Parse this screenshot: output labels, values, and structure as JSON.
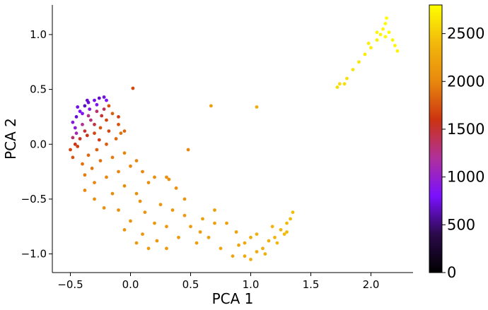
{
  "chart_data": {
    "type": "scatter",
    "title": "",
    "xlabel": "PCA 1",
    "ylabel": "PCA 2",
    "xlim": [
      -0.65,
      2.35
    ],
    "ylim": [
      -1.17,
      1.27
    ],
    "xticks": [
      {
        "value": -0.5,
        "label": "−0.5"
      },
      {
        "value": 0.0,
        "label": "0.0"
      },
      {
        "value": 0.5,
        "label": "0.5"
      },
      {
        "value": 1.0,
        "label": "1.0"
      },
      {
        "value": 1.5,
        "label": "1.5"
      },
      {
        "value": 2.0,
        "label": "2.0"
      }
    ],
    "yticks": [
      {
        "value": -1.0,
        "label": "−1.0"
      },
      {
        "value": -0.5,
        "label": "−0.5"
      },
      {
        "value": 0.0,
        "label": "0.0"
      },
      {
        "value": 0.5,
        "label": "0.5"
      },
      {
        "value": 1.0,
        "label": "1.0"
      }
    ],
    "grid": false,
    "colorbar": {
      "colormap": "gnuplot",
      "range": [
        0,
        2800
      ],
      "ticks": [
        {
          "value": 0,
          "label": "0"
        },
        {
          "value": 500,
          "label": "500"
        },
        {
          "value": 1000,
          "label": "1000"
        },
        {
          "value": 1500,
          "label": "1500"
        },
        {
          "value": 2000,
          "label": "2000"
        },
        {
          "value": 2500,
          "label": "2500"
        }
      ],
      "stops": [
        "#000000",
        "#2b0a4a",
        "#7a10ff",
        "#b0309a",
        "#cc3311",
        "#e8880e",
        "#f2b80c",
        "#ffff00"
      ]
    },
    "points": [
      [
        -0.45,
        0.25,
        700
      ],
      [
        -0.42,
        0.3,
        800
      ],
      [
        -0.38,
        0.35,
        650
      ],
      [
        -0.35,
        0.38,
        720
      ],
      [
        -0.3,
        0.4,
        760
      ],
      [
        -0.26,
        0.42,
        690
      ],
      [
        -0.22,
        0.43,
        740
      ],
      [
        -0.48,
        0.2,
        900
      ],
      [
        -0.46,
        0.15,
        950
      ],
      [
        -0.4,
        0.28,
        850
      ],
      [
        -0.34,
        0.32,
        880
      ],
      [
        -0.28,
        0.36,
        820
      ],
      [
        -0.33,
        0.22,
        1300
      ],
      [
        -0.3,
        0.18,
        1450
      ],
      [
        -0.38,
        0.12,
        1500
      ],
      [
        -0.42,
        0.05,
        1550
      ],
      [
        -0.46,
        0.0,
        1600
      ],
      [
        -0.5,
        -0.05,
        1700
      ],
      [
        -0.48,
        -0.12,
        1750
      ],
      [
        -0.44,
        -0.02,
        1650
      ],
      [
        -0.36,
        0.08,
        1600
      ],
      [
        -0.3,
        0.1,
        1700
      ],
      [
        -0.25,
        0.15,
        1750
      ],
      [
        -0.2,
        0.22,
        1680
      ],
      [
        -0.18,
        0.35,
        1750
      ],
      [
        -0.15,
        0.28,
        1800
      ],
      [
        -0.1,
        0.18,
        1750
      ],
      [
        -0.05,
        0.12,
        1850
      ],
      [
        0.02,
        0.51,
        1700
      ],
      [
        -0.12,
        0.05,
        1850
      ],
      [
        -0.2,
        0.0,
        1800
      ],
      [
        -0.28,
        -0.05,
        1820
      ],
      [
        -0.35,
        -0.1,
        1850
      ],
      [
        -0.4,
        -0.18,
        1900
      ],
      [
        -0.32,
        -0.22,
        1920
      ],
      [
        -0.25,
        -0.15,
        1900
      ],
      [
        -0.15,
        -0.12,
        1950
      ],
      [
        -0.05,
        -0.08,
        1980
      ],
      [
        0.05,
        -0.15,
        1990
      ],
      [
        0.1,
        -0.25,
        2000
      ],
      [
        -0.3,
        -0.35,
        2000
      ],
      [
        -0.38,
        -0.42,
        2020
      ],
      [
        -0.3,
        -0.5,
        2050
      ],
      [
        -0.22,
        -0.58,
        2060
      ],
      [
        -0.15,
        -0.45,
        2030
      ],
      [
        -0.05,
        -0.38,
        2040
      ],
      [
        0.05,
        -0.45,
        2060
      ],
      [
        0.15,
        -0.35,
        2050
      ],
      [
        0.2,
        -0.3,
        2050
      ],
      [
        0.3,
        -0.3,
        2070
      ],
      [
        0.32,
        -0.32,
        2070
      ],
      [
        -0.1,
        -0.6,
        2080
      ],
      [
        0.0,
        -0.7,
        2100
      ],
      [
        0.1,
        -0.82,
        2120
      ],
      [
        0.05,
        -0.9,
        2130
      ],
      [
        0.15,
        -0.95,
        2140
      ],
      [
        0.22,
        -0.88,
        2130
      ],
      [
        0.25,
        -0.55,
        2100
      ],
      [
        0.35,
        -0.6,
        2120
      ],
      [
        0.45,
        -0.65,
        2140
      ],
      [
        0.3,
        -0.75,
        2140
      ],
      [
        0.4,
        -0.85,
        2150
      ],
      [
        0.3,
        -0.95,
        2160
      ],
      [
        0.2,
        -0.72,
        2130
      ],
      [
        0.5,
        -0.75,
        2170
      ],
      [
        0.55,
        -0.9,
        2180
      ],
      [
        0.6,
        -0.68,
        2190
      ],
      [
        0.7,
        -0.72,
        2200
      ],
      [
        0.8,
        -0.72,
        2210
      ],
      [
        0.88,
        -0.8,
        2220
      ],
      [
        0.65,
        -0.85,
        2200
      ],
      [
        0.75,
        -0.95,
        2230
      ],
      [
        0.85,
        -1.02,
        2250
      ],
      [
        0.95,
        -0.9,
        2260
      ],
      [
        1.0,
        -0.85,
        2280
      ],
      [
        1.05,
        -0.98,
        2300
      ],
      [
        1.0,
        -1.05,
        2310
      ],
      [
        1.1,
        -0.95,
        2320
      ],
      [
        1.15,
        -0.88,
        2340
      ],
      [
        1.05,
        -0.82,
        2330
      ],
      [
        1.2,
        -0.85,
        2360
      ],
      [
        1.25,
        -0.78,
        2380
      ],
      [
        1.3,
        -0.72,
        2400
      ],
      [
        1.33,
        -0.68,
        2410
      ],
      [
        1.35,
        -0.62,
        2420
      ],
      [
        1.28,
        -0.82,
        2400
      ],
      [
        1.22,
        -0.9,
        2390
      ],
      [
        0.48,
        -0.05,
        2000
      ],
      [
        0.67,
        0.35,
        2200
      ],
      [
        1.05,
        0.34,
        2300
      ],
      [
        -0.45,
        0.1,
        1100
      ],
      [
        -0.4,
        0.18,
        1200
      ],
      [
        -0.35,
        0.26,
        1250
      ],
      [
        -0.28,
        0.3,
        1350
      ],
      [
        -0.22,
        0.32,
        1400
      ],
      [
        -0.44,
        0.34,
        750
      ],
      [
        -0.36,
        0.4,
        700
      ],
      [
        -0.2,
        0.4,
        800
      ],
      [
        -0.24,
        0.26,
        1500
      ],
      [
        -0.1,
        0.25,
        1650
      ],
      [
        -0.18,
        0.12,
        1700
      ],
      [
        -0.26,
        0.04,
        1650
      ],
      [
        -0.48,
        0.06,
        1350
      ],
      [
        -0.08,
        0.1,
        1900
      ],
      [
        -0.38,
        -0.28,
        1950
      ],
      [
        -0.2,
        -0.3,
        2000
      ],
      [
        -0.1,
        -0.25,
        2000
      ],
      [
        0.0,
        -0.2,
        2000
      ],
      [
        0.08,
        -0.52,
        2080
      ],
      [
        0.12,
        -0.62,
        2100
      ],
      [
        -0.05,
        -0.78,
        2100
      ],
      [
        0.38,
        -0.4,
        2080
      ],
      [
        0.45,
        -0.5,
        2100
      ],
      [
        0.58,
        -0.8,
        2180
      ],
      [
        0.7,
        -0.6,
        2190
      ],
      [
        0.9,
        -0.92,
        2250
      ],
      [
        0.95,
        -1.02,
        2270
      ],
      [
        1.12,
        -1.0,
        2320
      ],
      [
        1.18,
        -0.75,
        2370
      ],
      [
        1.3,
        -0.8,
        2410
      ],
      [
        1.72,
        0.52,
        2600
      ],
      [
        1.74,
        0.55,
        2600
      ],
      [
        1.8,
        0.6,
        2620
      ],
      [
        1.85,
        0.68,
        2650
      ],
      [
        1.9,
        0.75,
        2660
      ],
      [
        1.95,
        0.82,
        2680
      ],
      [
        2.0,
        0.88,
        2700
      ],
      [
        2.05,
        0.95,
        2720
      ],
      [
        2.08,
        1.0,
        2740
      ],
      [
        2.1,
        1.05,
        2760
      ],
      [
        2.12,
        1.1,
        2780
      ],
      [
        2.15,
        1.02,
        2760
      ],
      [
        2.18,
        0.95,
        2750
      ],
      [
        2.2,
        0.9,
        2740
      ],
      [
        2.22,
        0.85,
        2730
      ],
      [
        2.12,
        0.98,
        2770
      ],
      [
        2.05,
        1.02,
        2750
      ],
      [
        2.13,
        1.15,
        2790
      ],
      [
        1.78,
        0.55,
        2610
      ],
      [
        1.98,
        0.92,
        2700
      ]
    ]
  }
}
